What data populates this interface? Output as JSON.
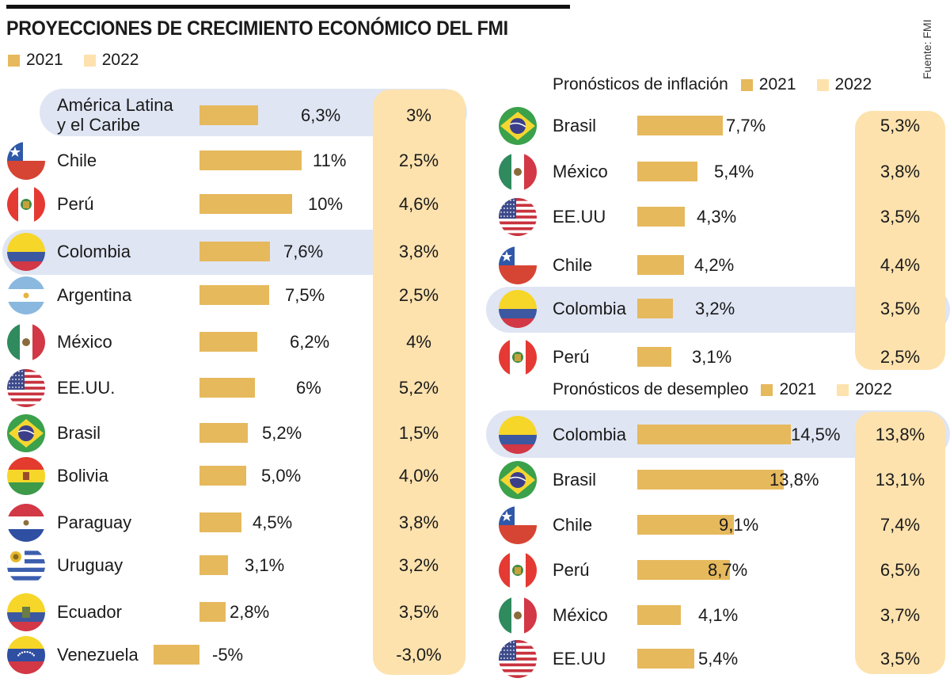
{
  "title": "PROYECCIONES DE CRECIMIENTO ECONÓMICO DEL FMI",
  "source": "Fuente: FMI",
  "colors": {
    "y2021": "#e6b95d",
    "y2022": "#fde2ae",
    "highlight": "#dfe5f3"
  },
  "legend": {
    "y2021": "2021",
    "y2022": "2022"
  },
  "chart_data": [
    {
      "type": "bar",
      "title": "Crecimiento económico",
      "unit": "%",
      "series": [
        {
          "name": "2021",
          "display": "bar"
        },
        {
          "name": "2022",
          "display": "text-column"
        }
      ],
      "categories": [
        "América Latina y el Caribe",
        "Chile",
        "Perú",
        "Colombia",
        "Argentina",
        "México",
        "EE.UU.",
        "Brasil",
        "Bolivia",
        "Paraguay",
        "Uruguay",
        "Ecuador",
        "Venezuela"
      ],
      "rows": [
        {
          "name": "América Latina",
          "name2": "y el Caribe",
          "flag": "region",
          "v2021": 6.3,
          "l2021": "6,3%",
          "l2022": "3%",
          "highlight": true
        },
        {
          "name": "Chile",
          "flag": "chile",
          "v2021": 11,
          "l2021": "11%",
          "l2022": "2,5%"
        },
        {
          "name": "Perú",
          "flag": "peru",
          "v2021": 10,
          "l2021": "10%",
          "l2022": "4,6%"
        },
        {
          "name": "Colombia",
          "flag": "colombia",
          "v2021": 7.6,
          "l2021": "7,6%",
          "l2022": "3,8%",
          "highlight": true
        },
        {
          "name": "Argentina",
          "flag": "argentina",
          "v2021": 7.5,
          "l2021": "7,5%",
          "l2022": "2,5%"
        },
        {
          "name": "México",
          "flag": "mexico",
          "v2021": 6.2,
          "l2021": "6,2%",
          "l2022": "4%"
        },
        {
          "name": "EE.UU.",
          "flag": "usa",
          "v2021": 6,
          "l2021": "6%",
          "l2022": "5,2%"
        },
        {
          "name": "Brasil",
          "flag": "brasil",
          "v2021": 5.2,
          "l2021": "5,2%",
          "l2022": "1,5%"
        },
        {
          "name": "Bolivia",
          "flag": "bolivia",
          "v2021": 5.0,
          "l2021": "5,0%",
          "l2022": "4,0%"
        },
        {
          "name": "Paraguay",
          "flag": "paraguay",
          "v2021": 4.5,
          "l2021": "4,5%",
          "l2022": "3,8%"
        },
        {
          "name": "Uruguay",
          "flag": "uruguay",
          "v2021": 3.1,
          "l2021": "3,1%",
          "l2022": "3,2%"
        },
        {
          "name": "Ecuador",
          "flag": "ecuador",
          "v2021": 2.8,
          "l2021": "2,8%",
          "l2022": "3,5%"
        },
        {
          "name": "Venezuela",
          "flag": "venezuela",
          "v2021": -5,
          "l2021": "-5%",
          "l2022": "-3,0%"
        }
      ]
    },
    {
      "type": "bar",
      "title": "Pronósticos de inflación",
      "unit": "%",
      "series": [
        {
          "name": "2021",
          "display": "bar"
        },
        {
          "name": "2022",
          "display": "text-column"
        }
      ],
      "categories": [
        "Brasil",
        "México",
        "EE.UU",
        "Chile",
        "Colombia",
        "Perú"
      ],
      "rows": [
        {
          "name": "Brasil",
          "flag": "brasil",
          "v2021": 7.7,
          "l2021": "7,7%",
          "l2022": "5,3%"
        },
        {
          "name": "México",
          "flag": "mexico",
          "v2021": 5.4,
          "l2021": "5,4%",
          "l2022": "3,8%"
        },
        {
          "name": "EE.UU",
          "flag": "usa",
          "v2021": 4.3,
          "l2021": "4,3%",
          "l2022": "3,5%"
        },
        {
          "name": "Chile",
          "flag": "chile",
          "v2021": 4.2,
          "l2021": "4,2%",
          "l2022": "4,4%"
        },
        {
          "name": "Colombia",
          "flag": "colombia",
          "v2021": 3.2,
          "l2021": "3,2%",
          "l2022": "3,5%",
          "highlight": true
        },
        {
          "name": "Perú",
          "flag": "peru",
          "v2021": 3.1,
          "l2021": "3,1%",
          "l2022": "2,5%"
        }
      ]
    },
    {
      "type": "bar",
      "title": "Pronósticos de desempleo",
      "unit": "%",
      "series": [
        {
          "name": "2021",
          "display": "bar"
        },
        {
          "name": "2022",
          "display": "text-column"
        }
      ],
      "categories": [
        "Colombia",
        "Brasil",
        "Chile",
        "Perú",
        "México",
        "EE.UU"
      ],
      "rows": [
        {
          "name": "Colombia",
          "flag": "colombia",
          "v2021": 14.5,
          "l2021": "14,5%",
          "l2022": "13,8%",
          "highlight": true
        },
        {
          "name": "Brasil",
          "flag": "brasil",
          "v2021": 13.8,
          "l2021": "13,8%",
          "l2022": "13,1%"
        },
        {
          "name": "Chile",
          "flag": "chile",
          "v2021": 9.1,
          "l2021": "9,1%",
          "l2022": "7,4%"
        },
        {
          "name": "Perú",
          "flag": "peru",
          "v2021": 8.7,
          "l2021": "8,7%",
          "l2022": "6,5%"
        },
        {
          "name": "México",
          "flag": "mexico",
          "v2021": 4.1,
          "l2021": "4,1%",
          "l2022": "3,7%"
        },
        {
          "name": "EE.UU",
          "flag": "usa",
          "v2021": 5.4,
          "l2021": "5,4%",
          "l2022": "3,5%"
        }
      ]
    }
  ]
}
